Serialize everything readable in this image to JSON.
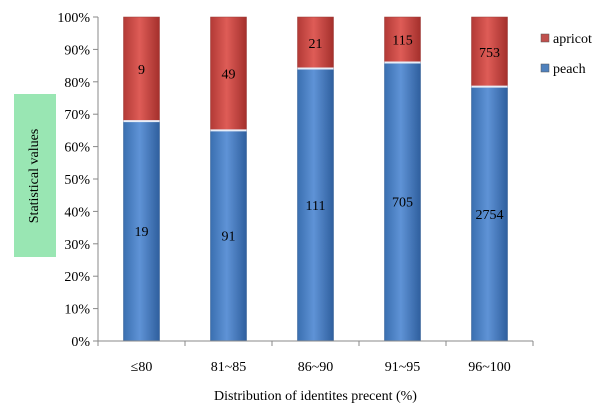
{
  "chart_data": {
    "type": "bar",
    "stacked": true,
    "normalized": true,
    "categories": [
      "≤80",
      "81~85",
      "86~90",
      "91~95",
      "96~100"
    ],
    "series": [
      {
        "name": "peach",
        "values": [
          19,
          91,
          111,
          705,
          2754
        ],
        "color": "#4f81bd"
      },
      {
        "name": "apricot",
        "values": [
          9,
          49,
          21,
          115,
          753
        ],
        "color": "#c0504d"
      }
    ],
    "xlabel": "Distribution of identites precent (%)",
    "ylabel": "Statistical values",
    "ylim": [
      0,
      100
    ],
    "ytick_labels": [
      "0%",
      "10%",
      "20%",
      "30%",
      "40%",
      "50%",
      "60%",
      "70%",
      "80%",
      "90%",
      "100%"
    ],
    "legend": {
      "position": "right",
      "order": [
        "apricot",
        "peach"
      ]
    },
    "grid": false,
    "ylabel_background": "#99e6b3"
  }
}
